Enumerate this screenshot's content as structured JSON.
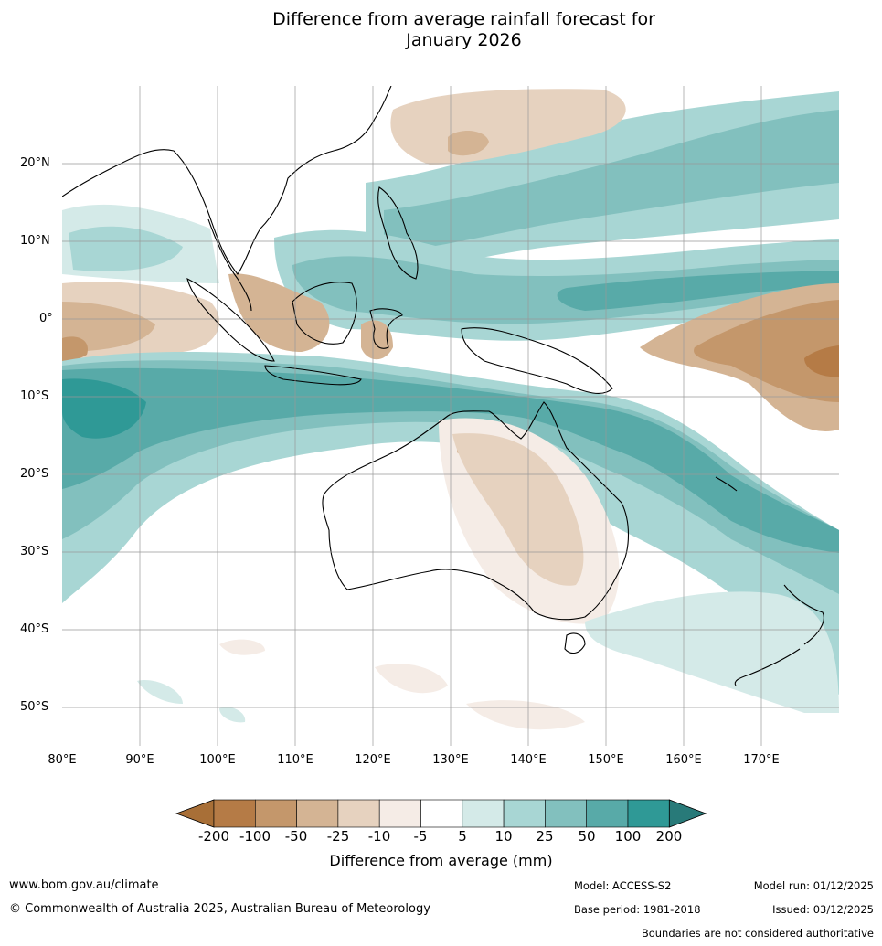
{
  "title_line1": "Difference from average rainfall forecast for",
  "title_line2": "January 2026",
  "lat_labels": [
    "20°N",
    "10°N",
    "0°",
    "10°S",
    "20°S",
    "30°S",
    "40°S",
    "50°S"
  ],
  "lon_labels": [
    "80°E",
    "90°E",
    "100°E",
    "110°E",
    "120°E",
    "130°E",
    "140°E",
    "150°E",
    "160°E",
    "170°E"
  ],
  "colorbar": {
    "title": "Difference from average (mm)",
    "ticks": [
      "-200",
      "-100",
      "-50",
      "-25",
      "-10",
      "-5",
      "5",
      "10",
      "25",
      "50",
      "100",
      "200"
    ],
    "colors": [
      "#a86f37",
      "#b57b46",
      "#c4976b",
      "#d4b494",
      "#e6d2bf",
      "#f5ece6",
      "#ffffff",
      "#d4eae8",
      "#a8d6d4",
      "#82c0be",
      "#58aaa8",
      "#2f9996",
      "#287a79"
    ]
  },
  "footer": {
    "url": "www.bom.gov.au/climate",
    "copyright": "© Commonwealth of Australia 2025, Australian Bureau of Meteorology",
    "model": "Model: ACCESS-S2",
    "model_run": "Model run: 01/12/2025",
    "base_period": "Base period: 1981-2018",
    "issued": "Issued: 03/12/2025",
    "disclaimer": "Boundaries are not considered authoritative"
  }
}
